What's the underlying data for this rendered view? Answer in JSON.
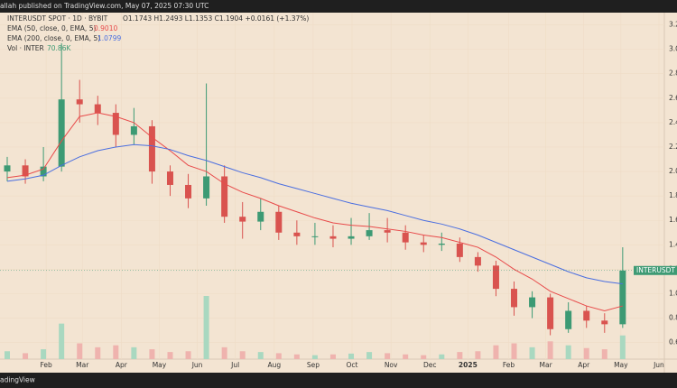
{
  "header": {
    "publisher": "allah published on TradingView.com, May 07, 2025 07:30 UTC",
    "footer": "adingView"
  },
  "chart_data": {
    "type": "candlestick",
    "symbol": "INTERUSDT SPOT · 1D · BYBIT",
    "ohlc_text": "O1.1743 H1.2493 L1.1353 C1.1904 +0.0161 (+1.37%)",
    "symbol_tag": "INTERUSDT",
    "x": [
      0,
      2,
      4,
      6,
      8,
      10,
      12,
      14,
      16,
      18,
      20,
      22,
      24,
      26,
      28,
      30,
      32,
      34,
      36,
      38,
      40,
      42,
      44,
      46,
      48,
      50,
      52,
      54,
      56,
      58,
      60,
      62,
      64,
      66,
      68
    ],
    "open": [
      2.0,
      2.05,
      1.96,
      2.04,
      2.59,
      2.55,
      2.48,
      2.3,
      2.37,
      2.0,
      1.89,
      1.78,
      1.96,
      1.63,
      1.59,
      1.67,
      1.5,
      1.47,
      1.47,
      1.45,
      1.47,
      1.52,
      1.5,
      1.42,
      1.4,
      1.41,
      1.3,
      1.23,
      1.04,
      0.89,
      0.97,
      0.71,
      0.86,
      0.78,
      0.75
    ],
    "high": [
      2.12,
      2.1,
      2.2,
      3.05,
      2.75,
      2.62,
      2.55,
      2.52,
      2.42,
      2.05,
      1.98,
      2.72,
      2.05,
      1.75,
      1.78,
      1.72,
      1.6,
      1.58,
      1.56,
      1.62,
      1.66,
      1.62,
      1.56,
      1.48,
      1.5,
      1.46,
      1.34,
      1.27,
      1.1,
      1.02,
      1.0,
      0.93,
      0.9,
      0.84,
      1.38
    ],
    "low": [
      1.92,
      1.9,
      1.92,
      2.0,
      2.4,
      2.38,
      2.2,
      2.22,
      1.9,
      1.8,
      1.7,
      1.72,
      1.58,
      1.45,
      1.52,
      1.44,
      1.4,
      1.4,
      1.38,
      1.4,
      1.44,
      1.42,
      1.36,
      1.34,
      1.35,
      1.26,
      1.18,
      0.98,
      0.82,
      0.8,
      0.66,
      0.68,
      0.72,
      0.68,
      0.72
    ],
    "close": [
      2.05,
      1.96,
      2.04,
      2.59,
      2.55,
      2.48,
      2.3,
      2.37,
      2.0,
      1.89,
      1.78,
      1.96,
      1.63,
      1.59,
      1.67,
      1.5,
      1.47,
      1.47,
      1.45,
      1.47,
      1.52,
      1.5,
      1.42,
      1.4,
      1.41,
      1.3,
      1.23,
      1.04,
      0.89,
      0.97,
      0.71,
      0.86,
      0.78,
      0.75,
      1.19
    ],
    "up_color": "#3d9a74",
    "down_color": "#d9534f",
    "series": [
      {
        "name": "EMA (50, close, 0, EMA, 5)",
        "legend_value": "0.9010",
        "color": "#e84a4a",
        "values": [
          1.95,
          1.97,
          2.02,
          2.25,
          2.45,
          2.48,
          2.45,
          2.4,
          2.28,
          2.17,
          2.05,
          2.0,
          1.9,
          1.83,
          1.78,
          1.72,
          1.67,
          1.62,
          1.58,
          1.56,
          1.55,
          1.53,
          1.51,
          1.48,
          1.46,
          1.42,
          1.38,
          1.3,
          1.2,
          1.12,
          1.02,
          0.96,
          0.9,
          0.86,
          0.9
        ]
      },
      {
        "name": "EMA (200, close, 0, EMA, 5)",
        "legend_value": "1.0799",
        "color": "#4a6ee0",
        "values": [
          1.92,
          1.94,
          1.97,
          2.05,
          2.12,
          2.17,
          2.2,
          2.22,
          2.21,
          2.18,
          2.13,
          2.09,
          2.04,
          1.99,
          1.95,
          1.9,
          1.86,
          1.82,
          1.78,
          1.74,
          1.71,
          1.68,
          1.64,
          1.6,
          1.57,
          1.53,
          1.48,
          1.42,
          1.36,
          1.3,
          1.24,
          1.18,
          1.13,
          1.1,
          1.08
        ]
      }
    ],
    "volume": {
      "name": "Vol · INTER",
      "legend_value": "70.86K",
      "values": [
        20,
        15,
        25,
        90,
        40,
        30,
        35,
        30,
        25,
        18,
        20,
        160,
        30,
        20,
        18,
        15,
        12,
        10,
        12,
        14,
        18,
        15,
        12,
        10,
        12,
        18,
        20,
        35,
        40,
        30,
        45,
        35,
        28,
        25,
        60
      ]
    },
    "xlim": [
      0,
      74.2
    ],
    "xticks": [
      {
        "value": 4.3,
        "label": "Feb"
      },
      {
        "value": 8.3,
        "label": "Mar"
      },
      {
        "value": 12.6,
        "label": "Apr"
      },
      {
        "value": 16.8,
        "label": "May"
      },
      {
        "value": 21,
        "label": "Jun"
      },
      {
        "value": 25.2,
        "label": "Jul"
      },
      {
        "value": 29.5,
        "label": "Aug"
      },
      {
        "value": 33.8,
        "label": "Sep"
      },
      {
        "value": 38.1,
        "label": "Oct"
      },
      {
        "value": 42.4,
        "label": "Nov"
      },
      {
        "value": 46.7,
        "label": "Dec"
      },
      {
        "value": 50.9,
        "label": "2025"
      },
      {
        "value": 55.4,
        "label": "Feb"
      },
      {
        "value": 59.5,
        "label": "Mar"
      },
      {
        "value": 63.7,
        "label": "Apr"
      },
      {
        "value": 67.8,
        "label": "May"
      },
      {
        "value": 72,
        "label": "Jun"
      }
    ],
    "ylim": [
      0.45,
      3.3
    ],
    "yticks": [
      {
        "value": 0.6,
        "label": "0.6000"
      },
      {
        "value": 0.8,
        "label": "0.8000"
      },
      {
        "value": 1.0,
        "label": "1.0000"
      },
      {
        "value": 1.2,
        "label": "1.2000"
      },
      {
        "value": 1.4,
        "label": "1.4000"
      },
      {
        "value": 1.6,
        "label": "1.6000"
      },
      {
        "value": 1.8,
        "label": "1.8000"
      },
      {
        "value": 2.0,
        "label": "2.0000"
      },
      {
        "value": 2.2,
        "label": "2.2000"
      },
      {
        "value": 2.4,
        "label": "2.4000"
      },
      {
        "value": 2.6,
        "label": "2.6000"
      },
      {
        "value": 2.8,
        "label": "2.8000"
      },
      {
        "value": 3.0,
        "label": "3.0000"
      },
      {
        "value": 3.2,
        "label": "3.2000"
      }
    ]
  }
}
